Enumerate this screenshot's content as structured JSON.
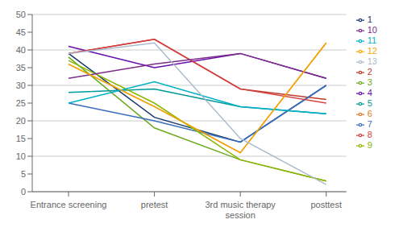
{
  "chart_data": {
    "type": "line",
    "categories": [
      "Entrance screening",
      "pretest",
      "3rd music therapy\nsession",
      "posttest"
    ],
    "series": [
      {
        "name": "1",
        "color": "#1a3a6b",
        "values": [
          39,
          21,
          14,
          30
        ]
      },
      {
        "name": "2",
        "color": "#c0392b",
        "values": [
          39,
          43,
          29,
          26
        ]
      },
      {
        "name": "3",
        "color": "#6aaa1e",
        "values": [
          38,
          18,
          9,
          3
        ]
      },
      {
        "name": "4",
        "color": "#6a0dad",
        "values": [
          41,
          35,
          39,
          32
        ]
      },
      {
        "name": "5",
        "color": "#009999",
        "values": [
          28,
          29,
          24,
          22
        ]
      },
      {
        "name": "6",
        "color": "#e07b20",
        "values": [
          36,
          24,
          11,
          42
        ]
      },
      {
        "name": "7",
        "color": "#3a6fbf",
        "values": [
          25,
          20,
          14,
          30
        ]
      },
      {
        "name": "8",
        "color": "#d44040",
        "values": [
          39,
          43,
          29,
          25
        ]
      },
      {
        "name": "9",
        "color": "#8db600",
        "values": [
          37,
          25,
          9,
          3
        ]
      },
      {
        "name": "10",
        "color": "#7b2d8b",
        "values": [
          32,
          36,
          39,
          32
        ]
      },
      {
        "name": "11",
        "color": "#00b0c8",
        "values": [
          25,
          31,
          24,
          22
        ]
      },
      {
        "name": "12",
        "color": "#f5a800",
        "values": [
          36,
          24,
          11,
          42
        ]
      },
      {
        "name": "13",
        "color": "#aabbcc",
        "values": [
          39,
          42,
          15,
          2
        ]
      }
    ],
    "ylim": [
      0,
      50
    ],
    "yticks": [
      0,
      5,
      10,
      15,
      20,
      25,
      30,
      35,
      40,
      45,
      50
    ],
    "grid": true,
    "legend": "right"
  }
}
